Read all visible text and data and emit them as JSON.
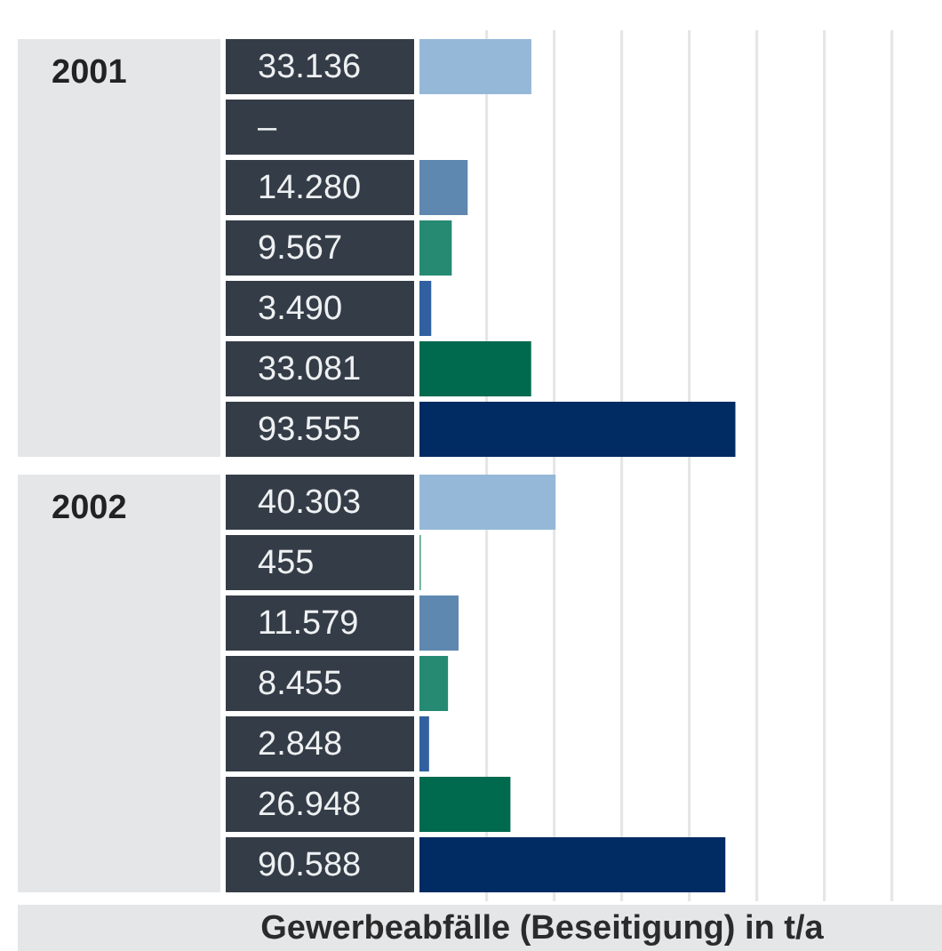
{
  "chart_data": {
    "type": "bar",
    "orientation": "horizontal",
    "categories": [
      "2001",
      "2002"
    ],
    "series": [
      {
        "color": "#95b8d8",
        "values": [
          33136,
          40303
        ],
        "value_labels": [
          "33.136",
          "40.303"
        ]
      },
      {
        "color": "#5fa88f",
        "values": [
          null,
          455
        ],
        "value_labels": [
          "–",
          "455"
        ]
      },
      {
        "color": "#5e88b0",
        "values": [
          14280,
          11579
        ],
        "value_labels": [
          "14.280",
          "11.579"
        ]
      },
      {
        "color": "#268a73",
        "values": [
          9567,
          8455
        ],
        "value_labels": [
          "9.567",
          "8.455"
        ]
      },
      {
        "color": "#3060a0",
        "values": [
          3490,
          2848
        ],
        "value_labels": [
          "3.490",
          "2.848"
        ]
      },
      {
        "color": "#006a4e",
        "values": [
          33081,
          26948
        ],
        "value_labels": [
          "33.081",
          "26.948"
        ]
      },
      {
        "color": "#002b63",
        "values": [
          93555,
          90588
        ],
        "value_labels": [
          "93.555",
          "90.588"
        ]
      }
    ],
    "xlabel": "Gewerbeabfälle (Beseitigung) in t/a",
    "xlim": [
      0,
      140000
    ],
    "xticks": [
      {
        "value": 20000,
        "label": null
      },
      {
        "value": 40000,
        "label": null
      },
      {
        "value": 60000,
        "label": null
      },
      {
        "value": 80000,
        "label": null
      },
      {
        "value": 100000,
        "label": null
      },
      {
        "value": 120000,
        "label": null
      },
      {
        "value": 140000,
        "label": null
      }
    ],
    "grid": "x",
    "tick_labels": "y"
  }
}
